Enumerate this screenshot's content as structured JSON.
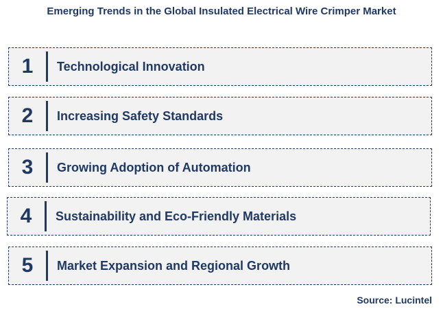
{
  "title": "Emerging Trends in the Global Insulated Electrical Wire Crimper Market",
  "trends": [
    {
      "number": "1",
      "label": "Technological Innovation"
    },
    {
      "number": "2",
      "label": "Increasing Safety Standards"
    },
    {
      "number": "3",
      "label": "Growing Adoption of Automation"
    },
    {
      "number": "4",
      "label": "Sustainability and Eco-Friendly Materials"
    },
    {
      "number": "5",
      "label": "Market Expansion and Regional Growth"
    }
  ],
  "source": "Source: Lucintel",
  "colors": {
    "text": "#1f3864",
    "box_fill": "#f2f2f2",
    "background": "#ffffff"
  }
}
